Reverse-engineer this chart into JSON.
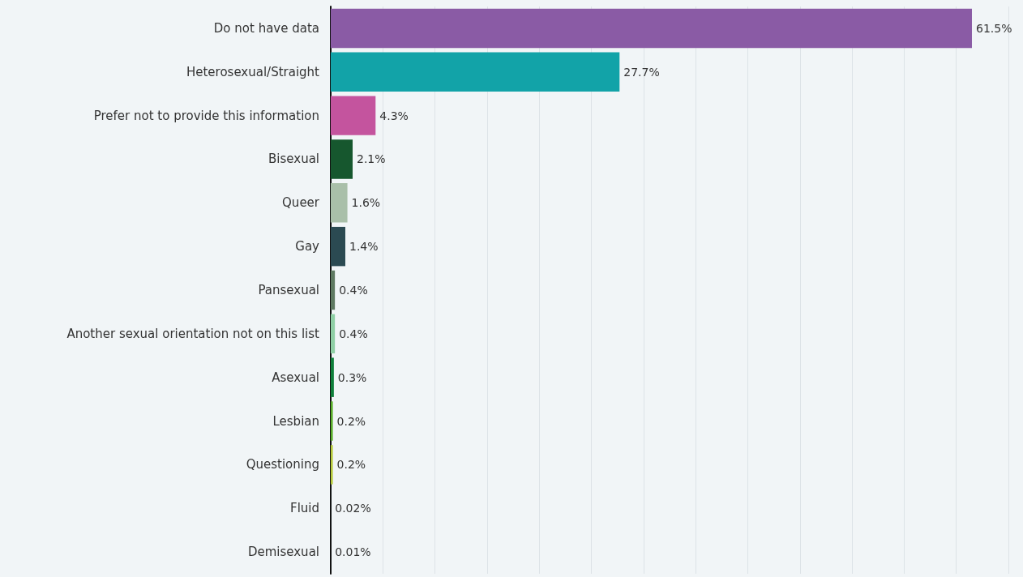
{
  "chart_data": {
    "type": "bar",
    "orientation": "horizontal",
    "categories": [
      "Do not have data",
      "Heterosexual/Straight",
      "Prefer not to provide this information",
      "Bisexual",
      "Queer",
      "Gay",
      "Pansexual",
      "Another sexual orientation not on this list",
      "Asexual",
      "Lesbian",
      "Questioning",
      "Fluid",
      "Demisexual"
    ],
    "values": [
      61.5,
      27.7,
      4.3,
      2.1,
      1.6,
      1.4,
      0.4,
      0.4,
      0.3,
      0.2,
      0.2,
      0.02,
      0.01
    ],
    "value_labels": [
      "61.5%",
      "27.7%",
      "4.3%",
      "2.1%",
      "1.6%",
      "1.4%",
      "0.4%",
      "0.4%",
      "0.3%",
      "0.2%",
      "0.2%",
      "0.02%",
      "0.01%"
    ],
    "colors": [
      "#8a5ba5",
      "#12a3a8",
      "#c4549e",
      "#16572e",
      "#a9bfa9",
      "#2b4a52",
      "#5f7a62",
      "#8fcfa5",
      "#0f7f3a",
      "#5aae2a",
      "#b5c93a",
      "#1a2a2a",
      "#1a2a2a"
    ],
    "xlim": [
      0,
      65
    ],
    "xticks": [
      {
        "value": 0,
        "label": null
      },
      {
        "value": 5,
        "label": null
      },
      {
        "value": 10,
        "label": null
      },
      {
        "value": 15,
        "label": null
      },
      {
        "value": 20,
        "label": null
      },
      {
        "value": 25,
        "label": null
      },
      {
        "value": 30,
        "label": null
      },
      {
        "value": 35,
        "label": null
      },
      {
        "value": 40,
        "label": null
      },
      {
        "value": 45,
        "label": null
      },
      {
        "value": 50,
        "label": null
      },
      {
        "value": 55,
        "label": null
      },
      {
        "value": 60,
        "label": null
      },
      {
        "value": 65,
        "label": null
      }
    ],
    "grid": "x",
    "tick_labels": "y"
  }
}
